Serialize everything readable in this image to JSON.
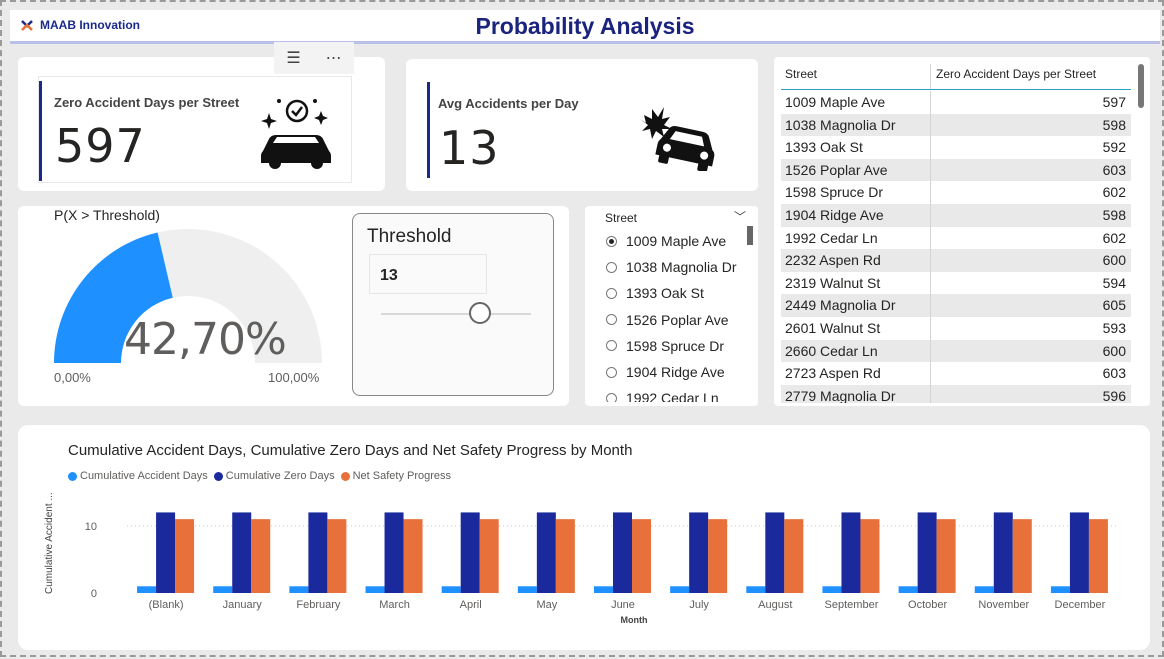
{
  "header": {
    "logo_text": "MAAB Innovation",
    "title": "Probability Analysis"
  },
  "visual_header": {
    "filter_icon": "filter-icon",
    "more_icon": "more-options-icon"
  },
  "kpis": [
    {
      "label": "Zero Accident Days per Street",
      "value": "597",
      "icon": "car-clean-icon"
    },
    {
      "label": "Avg Accidents per Day",
      "value": "13",
      "icon": "car-crash-icon"
    }
  ],
  "gauge": {
    "title": "P(X > Threshold)",
    "value_text": "42,70%",
    "fraction": 0.427,
    "min_label": "0,00%",
    "max_label": "100,00%",
    "fill_color": "#1e90ff",
    "track_color": "#efefef"
  },
  "threshold": {
    "title": "Threshold",
    "value": "13"
  },
  "slicer": {
    "header": "Street",
    "items": [
      {
        "label": "1009 Maple Ave",
        "selected": true
      },
      {
        "label": "1038 Magnolia Dr",
        "selected": false
      },
      {
        "label": "1393 Oak St",
        "selected": false
      },
      {
        "label": "1526 Poplar Ave",
        "selected": false
      },
      {
        "label": "1598 Spruce Dr",
        "selected": false
      },
      {
        "label": "1904 Ridge Ave",
        "selected": false
      },
      {
        "label": "1992 Cedar Ln",
        "selected": false
      }
    ]
  },
  "table": {
    "columns": [
      "Street",
      "Zero Accident Days per Street"
    ],
    "rows": [
      [
        "1009 Maple Ave",
        "597"
      ],
      [
        "1038 Magnolia Dr",
        "598"
      ],
      [
        "1393 Oak St",
        "592"
      ],
      [
        "1526 Poplar Ave",
        "603"
      ],
      [
        "1598 Spruce Dr",
        "602"
      ],
      [
        "1904 Ridge Ave",
        "598"
      ],
      [
        "1992 Cedar Ln",
        "602"
      ],
      [
        "2232 Aspen Rd",
        "600"
      ],
      [
        "2319 Walnut St",
        "594"
      ],
      [
        "2449 Magnolia Dr",
        "605"
      ],
      [
        "2601 Walnut St",
        "593"
      ],
      [
        "2660 Cedar Ln",
        "600"
      ],
      [
        "2723 Aspen Rd",
        "603"
      ],
      [
        "2779 Magnolia Dr",
        "596"
      ]
    ]
  },
  "chart_data": {
    "type": "bar",
    "title": "Cumulative Accident Days, Cumulative Zero Days and Net Safety Progress by Month",
    "xlabel": "Month",
    "ylabel": "Cumulative Accident ...",
    "ylim": [
      0,
      14
    ],
    "yticks": [
      0,
      10
    ],
    "grid": true,
    "legend_position": "top-left",
    "categories": [
      "(Blank)",
      "January",
      "February",
      "March",
      "April",
      "May",
      "June",
      "July",
      "August",
      "September",
      "October",
      "November",
      "December"
    ],
    "series": [
      {
        "name": "Cumulative Accident Days",
        "color": "#1e90ff",
        "values": [
          1,
          1,
          1,
          1,
          1,
          1,
          1,
          1,
          1,
          1,
          1,
          1,
          1
        ]
      },
      {
        "name": "Cumulative Zero Days",
        "color": "#1a2a9c",
        "values": [
          12,
          12,
          12,
          12,
          12,
          12,
          12,
          12,
          12,
          12,
          12,
          12,
          12
        ]
      },
      {
        "name": "Net Safety Progress",
        "color": "#e8703a",
        "values": [
          11,
          11,
          11,
          11,
          11,
          11,
          11,
          11,
          11,
          11,
          11,
          11,
          11
        ]
      }
    ]
  }
}
